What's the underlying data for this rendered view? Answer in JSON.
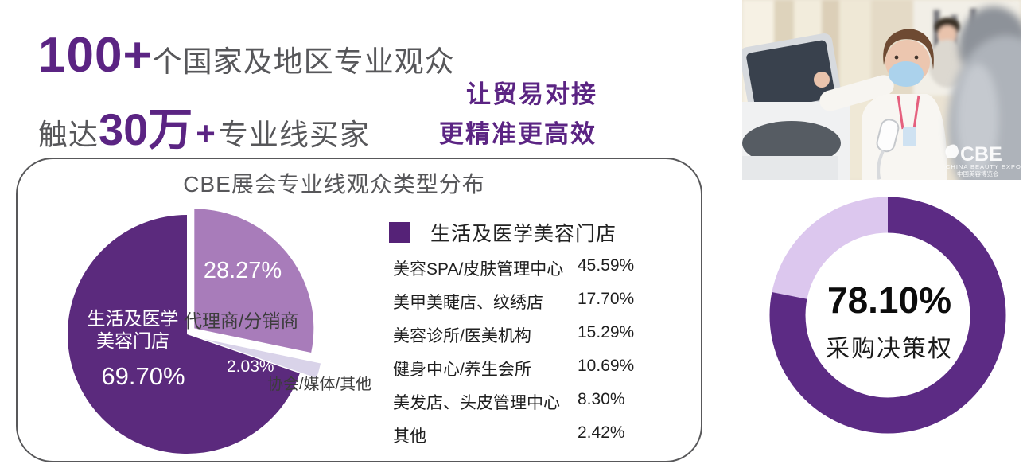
{
  "headline": {
    "stat1_number": "100+",
    "stat1_text": "个国家及地区专业观众",
    "stat2_prefix": "触达",
    "stat2_number": "30万",
    "stat2_plus": "+",
    "stat2_text": "专业线买家",
    "tagline_line1": "让贸易对接",
    "tagline_line2": "更精准更高效"
  },
  "colors": {
    "brand_purple": "#5b2483",
    "text_gray": "#57575a",
    "panel_border": "#58585a",
    "pie_dark": "#5b2a7d",
    "pie_medium": "#a87cba",
    "pie_light": "#d9d3e9",
    "donut_main": "#5c2b84",
    "donut_rest": "#dcc7ee"
  },
  "chart_data": [
    {
      "type": "pie",
      "title": "CBE展会专业线观众类型分布",
      "legend_position": "none",
      "slices": [
        {
          "label": "代理商/分销商",
          "value": 28.27,
          "color": "#a87cba",
          "explode": 12
        },
        {
          "label": "协会/媒体/其他",
          "value": 2.03,
          "color": "#d9d3e9",
          "explode": 22
        },
        {
          "label": "生活及医学美容门店",
          "value": 69.7,
          "color": "#5b2a7d",
          "explode": 0
        }
      ],
      "annotations": {
        "medium_pct": "28.27%",
        "medium_name": "代理商/分销商",
        "dark_name_line1": "生活及医学",
        "dark_name_line2": "美容门店",
        "dark_pct": "69.70%",
        "tiny_pct": "2.03%",
        "tiny_name": "协会/媒体/其他"
      }
    },
    {
      "type": "table",
      "title": "生活及医学美容门店",
      "swatch_color": "#552277",
      "rows": [
        {
          "label": "美容SPA/皮肤管理中心",
          "value": "45.59%"
        },
        {
          "label": "美甲美睫店、纹绣店",
          "value": "17.70%"
        },
        {
          "label": "美容诊所/医美机构",
          "value": "15.29%"
        },
        {
          "label": "健身中心/养生会所",
          "value": "10.69%"
        },
        {
          "label": "美发店、头皮管理中心",
          "value": "8.30%"
        },
        {
          "label": "其他",
          "value": "2.42%"
        }
      ]
    },
    {
      "type": "donut",
      "value": 78.1,
      "start": "top",
      "direction": "clockwise",
      "center_label": "78.10%",
      "center_caption": "采购决策权",
      "color_main": "#5c2b84",
      "color_rest": "#dcc7ee"
    }
  ],
  "photo": {
    "watermark_title": "CBE",
    "watermark_line1": "CHINA BEAUTY EXPO",
    "watermark_line2": "中国美容博览会"
  }
}
